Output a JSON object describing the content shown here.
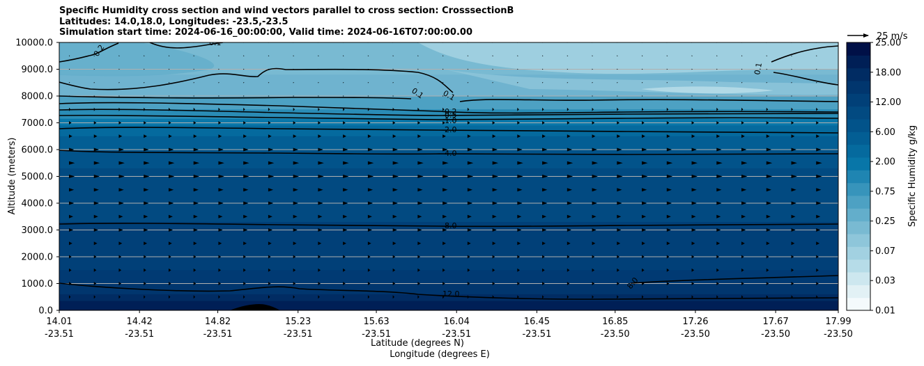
{
  "chart_data": {
    "type": "contour",
    "title_lines": [
      "Specific Humidity cross section and wind vectors parallel to cross section: CrosssectionB",
      "Latitudes: 14.0,18.0, Longitudes: -23.5,-23.5",
      "Simulation start time: 2024-06-16_00:00:00, Valid time: 2024-06-16T07:00:00.00"
    ],
    "ylabel": "Altitude (meters)",
    "xlabel_lines": [
      "Latitude (degrees N)",
      "Longitude (degrees E)"
    ],
    "ylim": [
      0,
      10000
    ],
    "xlim": [
      14.01,
      17.99
    ],
    "yticks": [
      0,
      1000,
      2000,
      3000,
      4000,
      5000,
      6000,
      7000,
      8000,
      9000,
      10000
    ],
    "ytick_labels": [
      "0.0",
      "1000.0",
      "2000.0",
      "3000.0",
      "4000.0",
      "5000.0",
      "6000.0",
      "7000.0",
      "8000.0",
      "9000.0",
      "10000.0"
    ],
    "xticks": [
      {
        "lat": "14.01",
        "lon": "-23.51"
      },
      {
        "lat": "14.42",
        "lon": "-23.51"
      },
      {
        "lat": "14.82",
        "lon": "-23.51"
      },
      {
        "lat": "15.23",
        "lon": "-23.51"
      },
      {
        "lat": "15.63",
        "lon": "-23.51"
      },
      {
        "lat": "16.04",
        "lon": "-23.51"
      },
      {
        "lat": "16.45",
        "lon": "-23.51"
      },
      {
        "lat": "16.85",
        "lon": "-23.50"
      },
      {
        "lat": "17.26",
        "lon": "-23.50"
      },
      {
        "lat": "17.67",
        "lon": "-23.50"
      },
      {
        "lat": "17.99",
        "lon": "-23.50"
      }
    ],
    "colorbar": {
      "label": "Specific Humidity g/kg",
      "tick_labels": [
        "0.01",
        "0.03",
        "0.07",
        "0.25",
        "0.75",
        "2.00",
        "6.00",
        "12.00",
        "18.00",
        "25.00"
      ],
      "colors": [
        "#f4fafc",
        "#e2f1f5",
        "#cde7ef",
        "#b6dce8",
        "#a2d1e1",
        "#8ec6da",
        "#79bad2",
        "#63aecb",
        "#4da1c3",
        "#3794bb",
        "#1f85b2",
        "#0876a8",
        "#056a9e",
        "#035e94",
        "#02538a",
        "#024a81",
        "#014078",
        "#01366e",
        "#012c63",
        "#001f56",
        "#001047"
      ]
    },
    "contour_lines": [
      {
        "label": "0.1",
        "approx_altitude_m": 9800
      },
      {
        "label": "0.2",
        "approx_altitude_m": 9300
      },
      {
        "label": "0.1",
        "approx_altitude_m": 8000
      },
      {
        "label": "0.2",
        "approx_altitude_m": 7300
      },
      {
        "label": "0.5",
        "approx_altitude_m": 7200
      },
      {
        "label": "1.0",
        "approx_altitude_m": 7050
      },
      {
        "label": "2.0",
        "approx_altitude_m": 6750
      },
      {
        "label": "4.0",
        "approx_altitude_m": 5900
      },
      {
        "label": "8.0",
        "approx_altitude_m": 3200
      },
      {
        "label": "8.0",
        "approx_altitude_m": 800
      },
      {
        "label": "12.0",
        "approx_altitude_m": 550
      }
    ],
    "wind_reference": {
      "label": "25 m/s",
      "speed_ms": 25
    },
    "wind_vectors": [
      {
        "altitude_m": 10000,
        "speed_ms": 1
      },
      {
        "altitude_m": 9500,
        "speed_ms": 1
      },
      {
        "altitude_m": 9000,
        "speed_ms": 1
      },
      {
        "altitude_m": 8500,
        "speed_ms": 1
      },
      {
        "altitude_m": 8000,
        "speed_ms": 1
      },
      {
        "altitude_m": 7500,
        "speed_ms": 2
      },
      {
        "altitude_m": 7000,
        "speed_ms": 3
      },
      {
        "altitude_m": 6500,
        "speed_ms": 4
      },
      {
        "altitude_m": 6000,
        "speed_ms": 6
      },
      {
        "altitude_m": 5500,
        "speed_ms": 7
      },
      {
        "altitude_m": 5000,
        "speed_ms": 7
      },
      {
        "altitude_m": 4500,
        "speed_ms": 6
      },
      {
        "altitude_m": 4000,
        "speed_ms": 6
      },
      {
        "altitude_m": 3500,
        "speed_ms": 5
      },
      {
        "altitude_m": 3000,
        "speed_ms": 5
      },
      {
        "altitude_m": 2500,
        "speed_ms": 4
      },
      {
        "altitude_m": 2000,
        "speed_ms": 3
      },
      {
        "altitude_m": 1500,
        "speed_ms": 3
      },
      {
        "altitude_m": 1000,
        "speed_ms": 3
      },
      {
        "altitude_m": 500,
        "speed_ms": 2
      },
      {
        "altitude_m": 0,
        "speed_ms": 1
      }
    ]
  }
}
